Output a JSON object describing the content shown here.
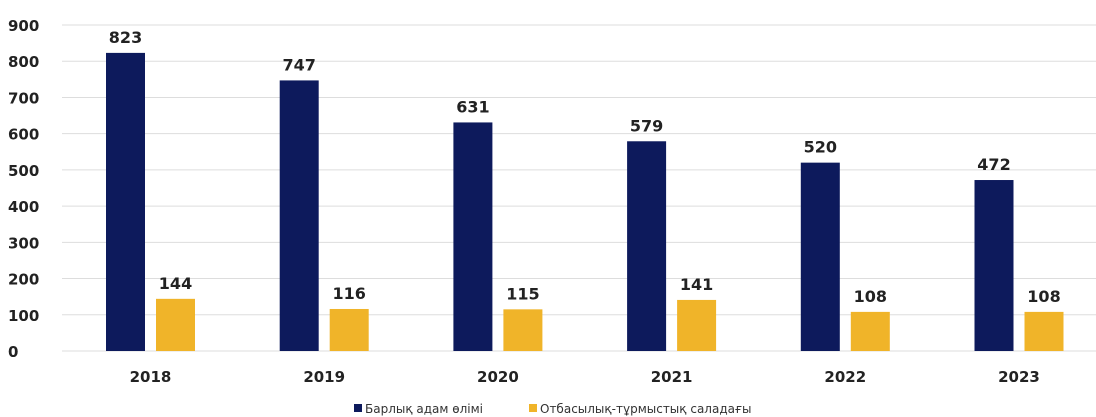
{
  "chart_data": {
    "type": "bar",
    "categories": [
      "2018",
      "2019",
      "2020",
      "2021",
      "2022",
      "2023"
    ],
    "series": [
      {
        "name": "Барлық адам өлімі",
        "values": [
          823,
          747,
          631,
          579,
          520,
          472
        ],
        "color": "#0d1a5c"
      },
      {
        "name": "Отбасылық-тұрмыстық саладағы",
        "values": [
          144,
          116,
          115,
          141,
          108,
          108
        ],
        "color": "#f0b429"
      }
    ],
    "yticks": [
      0,
      100,
      200,
      300,
      400,
      500,
      600,
      700,
      800,
      900
    ],
    "ylim": [
      0,
      900
    ],
    "grid": true,
    "legend_position": "bottom"
  }
}
